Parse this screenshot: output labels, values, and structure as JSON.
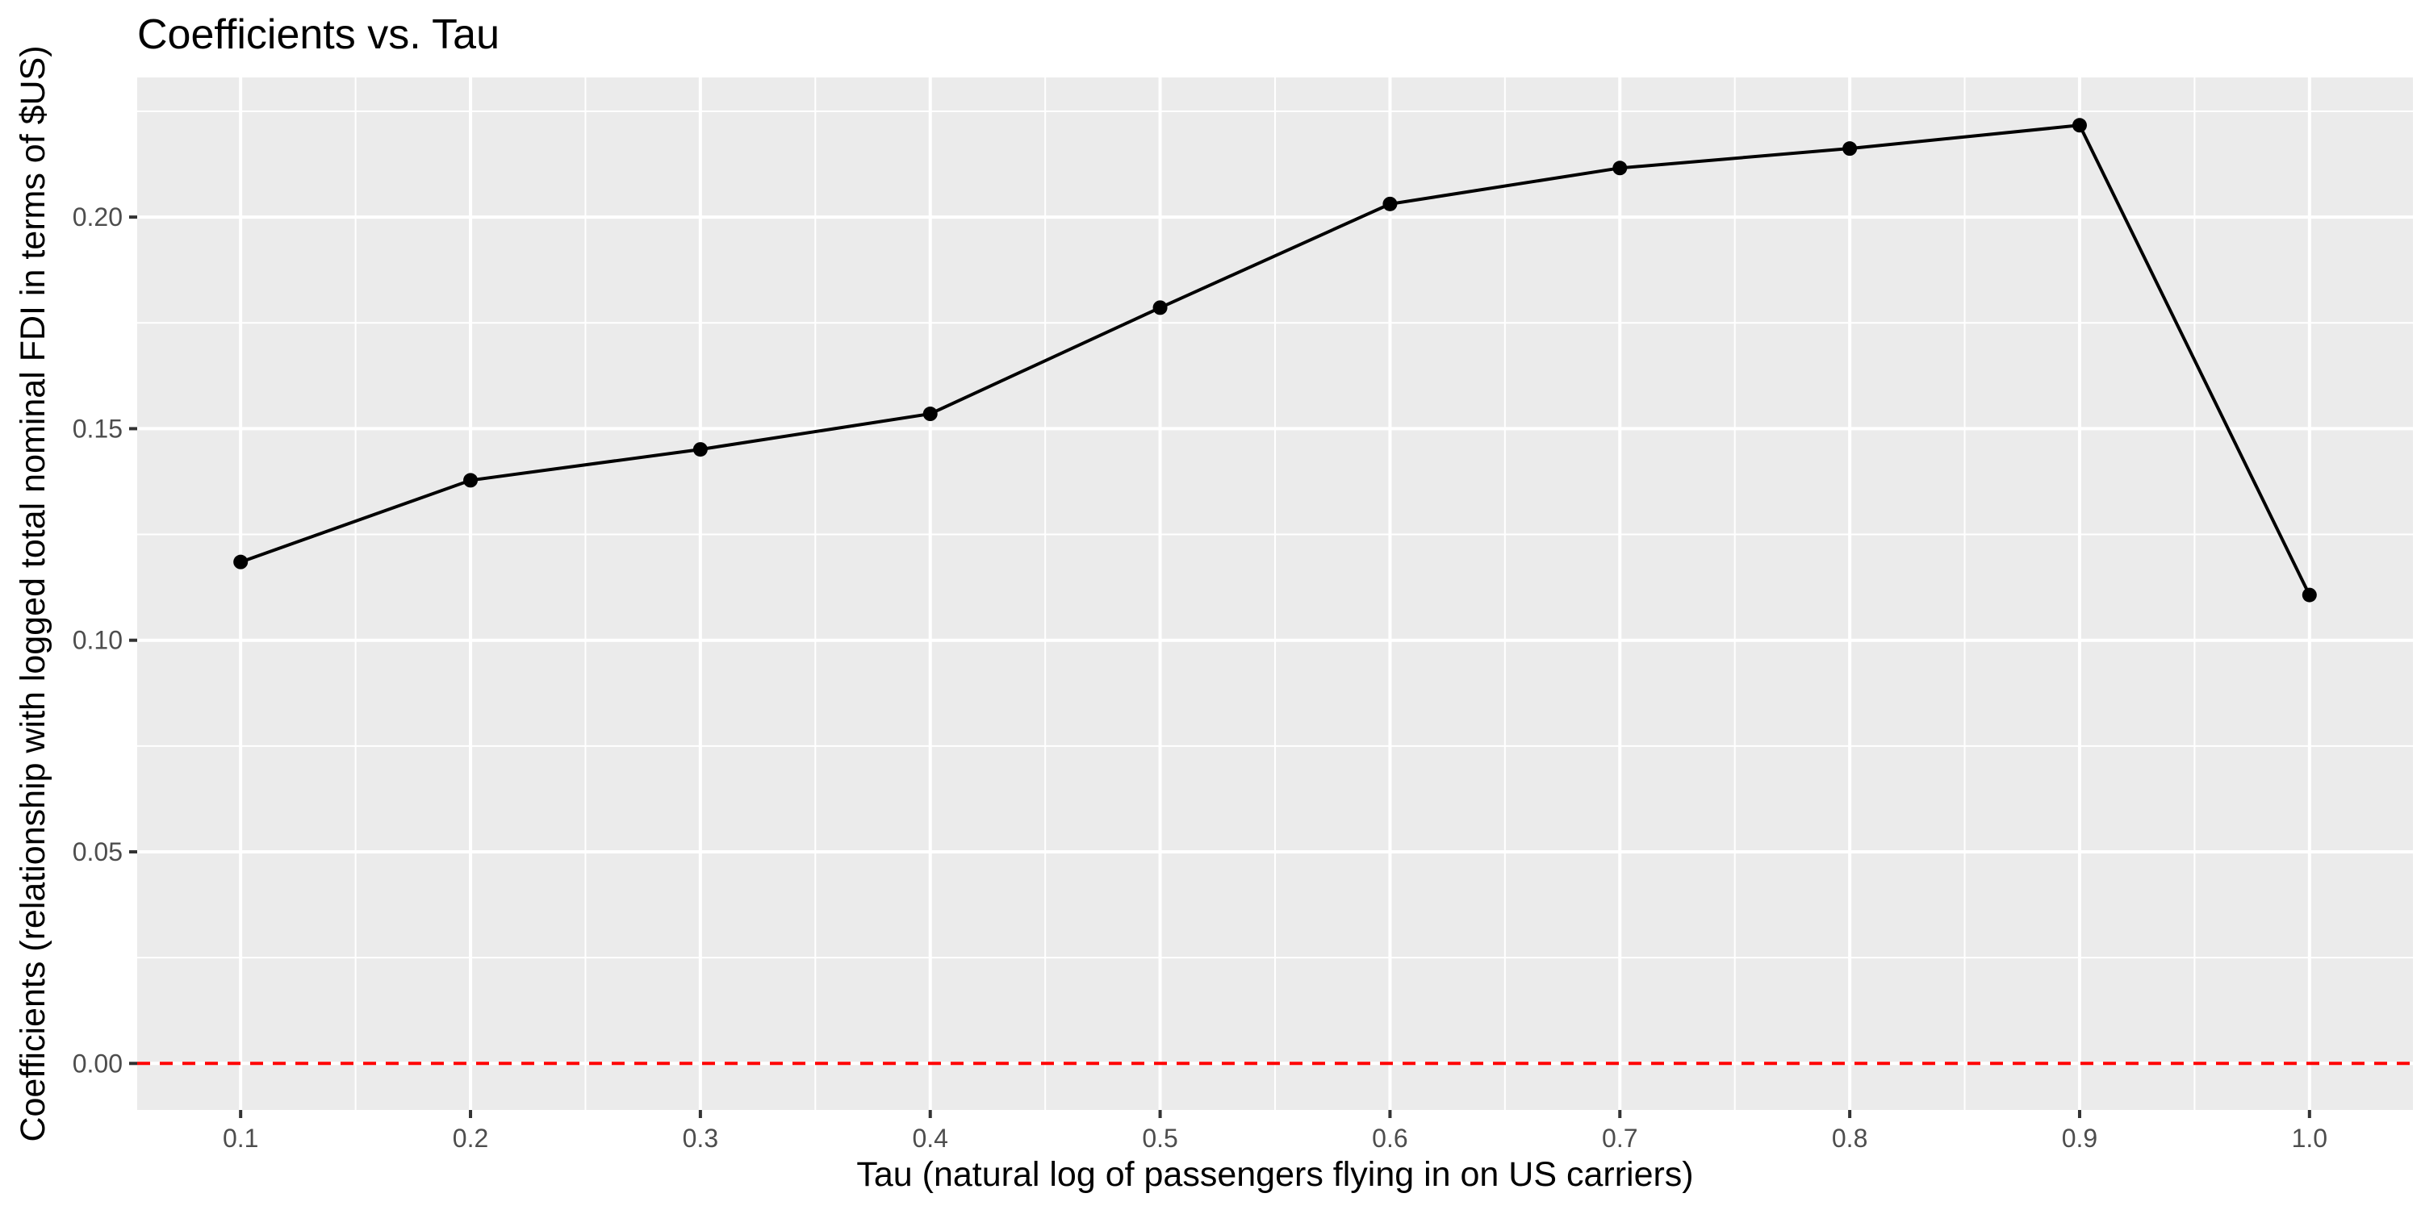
{
  "chart_data": {
    "type": "line",
    "title": "Coefficients vs. Tau",
    "xlabel": "Tau (natural log of passengers flying in on US carriers)",
    "ylabel": "Coefficients (relationship with logged total nominal FDI in terms of $US)",
    "xlim": [
      0.055,
      1.045
    ],
    "ylim": [
      -0.011,
      0.233
    ],
    "x_ticks": [
      0.1,
      0.2,
      0.3,
      0.4,
      0.5,
      0.6,
      0.7,
      0.8,
      0.9,
      1.0
    ],
    "x_tick_labels": [
      "0.1",
      "0.2",
      "0.3",
      "0.4",
      "0.5",
      "0.6",
      "0.7",
      "0.8",
      "0.9",
      "1.0"
    ],
    "y_ticks": [
      0.0,
      0.05,
      0.1,
      0.15,
      0.2
    ],
    "y_tick_labels": [
      "0.00",
      "0.05",
      "0.10",
      "0.15",
      "0.20"
    ],
    "grid": true,
    "series": [
      {
        "x": [
          0.1,
          0.2,
          0.3,
          0.4,
          0.5,
          0.6,
          0.7,
          0.8,
          0.9,
          1.0
        ],
        "y": [
          0.1185,
          0.1378,
          0.1451,
          0.1535,
          0.1786,
          0.2031,
          0.2116,
          0.2162,
          0.2217,
          0.1107
        ],
        "color": "#000000",
        "markers": true
      }
    ],
    "reference_lines": [
      {
        "orientation": "horizontal",
        "y": 0.0,
        "color": "#ff0000",
        "style": "dashed"
      }
    ],
    "colors": {
      "panel_background": "#ebebeb",
      "grid": "#ffffff",
      "tick_label": "#4d4d4d",
      "axis_title": "#000000"
    }
  }
}
